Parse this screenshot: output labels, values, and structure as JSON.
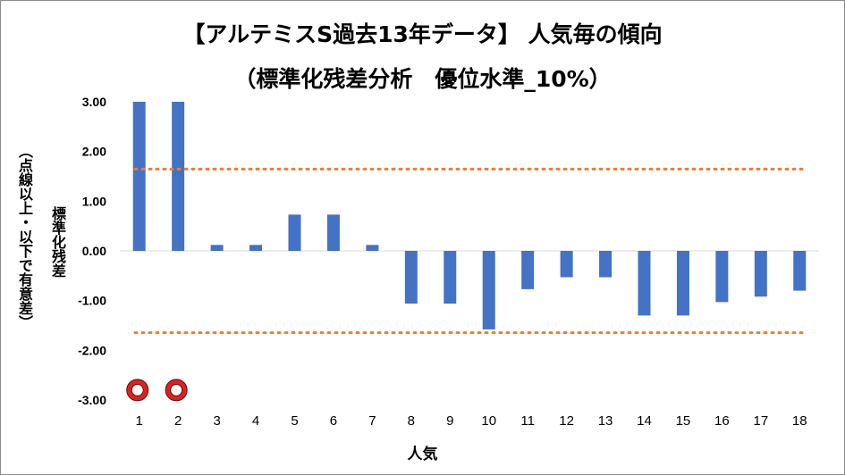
{
  "chart_data": {
    "type": "bar",
    "title_line1": "【アルテミスS過去13年データ】 人気毎の傾向",
    "title_line2": "（標準化残差分析　優位水準_10%）",
    "ylabel_main": "標準化残差",
    "ylabel_sub": "（点線以上・以下で有意差）",
    "xlabel": "人気",
    "categories": [
      "1",
      "2",
      "3",
      "4",
      "5",
      "6",
      "7",
      "8",
      "9",
      "10",
      "11",
      "12",
      "13",
      "14",
      "15",
      "16",
      "17",
      "18"
    ],
    "values": [
      3.0,
      3.0,
      0.12,
      0.12,
      0.73,
      0.73,
      0.12,
      -1.06,
      -1.06,
      -1.58,
      -0.77,
      -0.53,
      -0.53,
      -1.3,
      -1.3,
      -1.03,
      -0.92,
      -0.8
    ],
    "ylim": [
      -3.0,
      3.0
    ],
    "ytick_labels": [
      "3.00",
      "2.00",
      "1.00",
      "0.00",
      "-1.00",
      "-2.00",
      "-3.00"
    ],
    "threshold_upper": 1.645,
    "threshold_lower": -1.645,
    "marker_categories": [
      "1",
      "2"
    ],
    "marker_value": -2.8,
    "colors": {
      "bar": "#4472c4",
      "threshold": "#ed7d31",
      "marker_ring": "#e02020",
      "marker_fill": "#ffffff"
    },
    "grid": false
  }
}
